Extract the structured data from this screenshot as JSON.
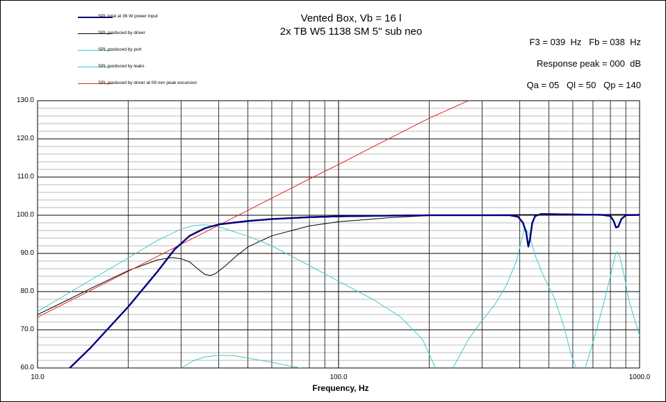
{
  "chart_data": {
    "type": "line",
    "title": "Vented Box, Vb = 16 l",
    "subtitle": "2x TB W5 1138 SM 5'' sub neo",
    "xlabel": "Frequency, Hz",
    "ylabel": "",
    "x_scale": "log",
    "xlim": [
      10,
      1000
    ],
    "ylim": [
      60,
      130
    ],
    "x_ticks": [
      "10.0",
      "100.0",
      "1000.0"
    ],
    "y_ticks": [
      "60.0",
      "70.0",
      "80.0",
      "90.0",
      "100.0",
      "110.0",
      "120.0",
      "130.0"
    ],
    "grid": true,
    "legend_position": "top-left",
    "annotations": {
      "line1": "F3 = 039  Hz   Fb = 038  Hz",
      "line2": "Response peak = 000  dB",
      "line3": "Qa = 05   Ql = 50   Qp = 140"
    },
    "series": [
      {
        "name": "SPL total at 36 W power input",
        "color": "#000080",
        "points": [
          [
            12.8,
            60.0
          ],
          [
            15,
            65.3
          ],
          [
            20,
            76.0
          ],
          [
            25,
            85.2
          ],
          [
            28.5,
            91.0
          ],
          [
            32,
            94.6
          ],
          [
            36,
            96.6
          ],
          [
            40,
            97.6
          ],
          [
            50,
            98.5
          ],
          [
            60,
            99.0
          ],
          [
            80,
            99.5
          ],
          [
            100,
            99.7
          ],
          [
            150,
            99.9
          ],
          [
            200,
            100.0
          ],
          [
            300,
            100.0
          ],
          [
            370,
            100.0
          ],
          [
            395,
            99.6
          ],
          [
            410,
            98.0
          ],
          [
            420,
            95.5
          ],
          [
            427,
            91.8
          ],
          [
            432,
            93.5
          ],
          [
            440,
            98.0
          ],
          [
            450,
            99.8
          ],
          [
            470,
            100.3
          ],
          [
            500,
            100.3
          ],
          [
            600,
            100.2
          ],
          [
            750,
            100.1
          ],
          [
            800,
            99.8
          ],
          [
            820,
            98.5
          ],
          [
            835,
            96.8
          ],
          [
            850,
            97.0
          ],
          [
            870,
            99.0
          ],
          [
            900,
            100.0
          ],
          [
            1000,
            100.1
          ]
        ]
      },
      {
        "name": "SPL produced by driver",
        "color": "#000000",
        "points": [
          [
            10,
            74.0
          ],
          [
            12,
            77.0
          ],
          [
            15,
            80.8
          ],
          [
            20,
            85.5
          ],
          [
            25,
            88.3
          ],
          [
            28,
            88.9
          ],
          [
            30,
            88.6
          ],
          [
            32,
            87.8
          ],
          [
            34,
            86.0
          ],
          [
            36,
            84.5
          ],
          [
            37.5,
            84.2
          ],
          [
            39,
            84.7
          ],
          [
            42,
            86.7
          ],
          [
            46,
            89.5
          ],
          [
            50,
            91.7
          ],
          [
            60,
            94.6
          ],
          [
            80,
            97.2
          ],
          [
            100,
            98.3
          ],
          [
            150,
            99.4
          ],
          [
            200,
            99.9
          ],
          [
            300,
            100.1
          ],
          [
            500,
            100.2
          ],
          [
            1000,
            100.2
          ]
        ]
      },
      {
        "name": "SPL produced by port",
        "color": "#40C8C8",
        "points": [
          [
            10,
            74.8
          ],
          [
            15,
            83.0
          ],
          [
            20,
            88.8
          ],
          [
            25,
            93.4
          ],
          [
            30,
            96.4
          ],
          [
            33,
            97.3
          ],
          [
            36,
            97.5
          ],
          [
            40,
            97.0
          ],
          [
            50,
            94.5
          ],
          [
            60,
            92.0
          ],
          [
            80,
            86.8
          ],
          [
            100,
            82.7
          ],
          [
            130,
            78.0
          ],
          [
            160,
            73.5
          ],
          [
            190,
            67.5
          ],
          [
            210,
            60.0
          ]
        ]
      },
      {
        "name": "SPL produced by port",
        "color": "#40C8C8",
        "points": [
          [
            240,
            60.0
          ],
          [
            270,
            67.5
          ],
          [
            300,
            72.5
          ],
          [
            330,
            76.5
          ],
          [
            360,
            81.5
          ],
          [
            390,
            88.0
          ],
          [
            415,
            96.8
          ],
          [
            430,
            95.0
          ],
          [
            450,
            89.5
          ],
          [
            480,
            84.0
          ],
          [
            520,
            78.5
          ],
          [
            560,
            71.0
          ],
          [
            590,
            64.0
          ],
          [
            615,
            60.0
          ]
        ]
      },
      {
        "name": "SPL produced by port",
        "color": "#40C8C8",
        "points": [
          [
            660,
            60.0
          ],
          [
            690,
            65.0
          ],
          [
            720,
            70.0
          ],
          [
            760,
            77.0
          ],
          [
            800,
            84.0
          ],
          [
            830,
            89.5
          ],
          [
            845,
            90.5
          ],
          [
            860,
            89.0
          ],
          [
            890,
            84.0
          ],
          [
            920,
            78.0
          ],
          [
            960,
            73.0
          ],
          [
            1000,
            68.5
          ]
        ]
      },
      {
        "name": "SPL produced by leaks",
        "color": "#40C8C8",
        "points": [
          [
            30,
            60.0
          ],
          [
            33,
            61.9
          ],
          [
            36,
            62.9
          ],
          [
            40,
            63.3
          ],
          [
            45,
            63.2
          ],
          [
            50,
            62.6
          ],
          [
            60,
            61.5
          ],
          [
            70,
            60.4
          ],
          [
            75,
            60.0
          ]
        ]
      },
      {
        "name": "SPL produced by driver at 09 mm peak excursion",
        "color": "#E02020",
        "points": [
          [
            10,
            73.3
          ],
          [
            20,
            85.3
          ],
          [
            30,
            92.4
          ],
          [
            40,
            97.4
          ],
          [
            50,
            101.3
          ],
          [
            80,
            109.5
          ],
          [
            100,
            113.3
          ],
          [
            150,
            120.4
          ],
          [
            200,
            125.4
          ],
          [
            270,
            130.0
          ]
        ]
      }
    ]
  },
  "legend": [
    {
      "label": "SPL total at 36 W power input",
      "color": "#000080",
      "width": 2.5
    },
    {
      "label": "SPL produced by driver",
      "color": "#000000",
      "width": 1
    },
    {
      "label": "SPL produced by port",
      "color": "#40C8C8",
      "width": 1
    },
    {
      "label": "SPL produced by leaks",
      "color": "#40C8C8",
      "width": 1
    },
    {
      "label": "SPL produced by driver at 09 mm peak excursion",
      "color": "#E02020",
      "width": 1
    }
  ]
}
